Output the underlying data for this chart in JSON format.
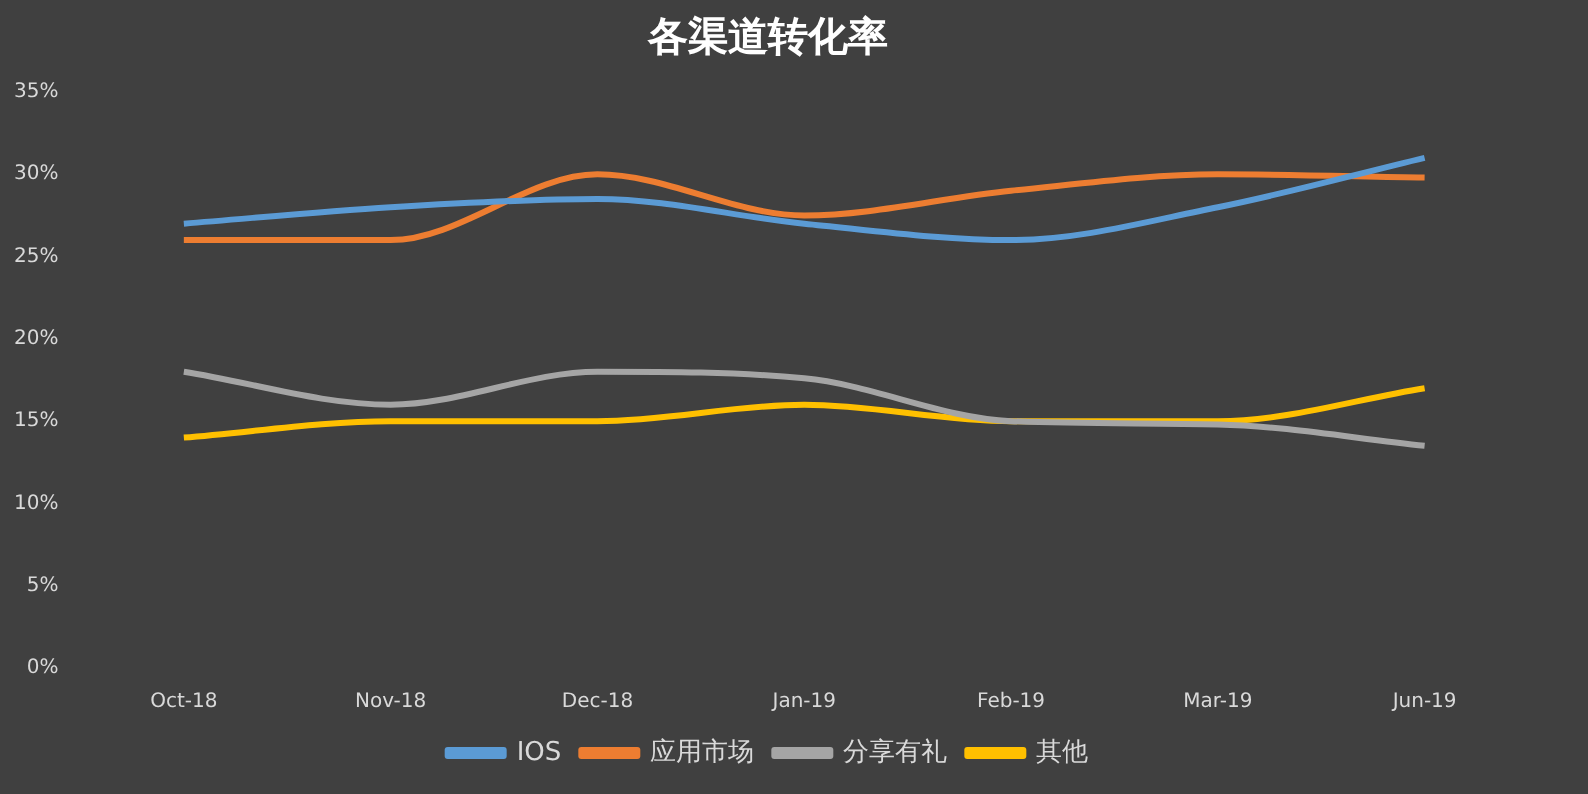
{
  "chart_data": {
    "type": "line",
    "title": "各渠道转化率",
    "categories": [
      "Oct-18",
      "Nov-18",
      "Dec-18",
      "Jan-19",
      "Feb-19",
      "Mar-19",
      "Jun-19"
    ],
    "series": [
      {
        "name": "IOS",
        "color": "#5b9bd5",
        "values": [
          27,
          28,
          28.5,
          27,
          26,
          28,
          31
        ]
      },
      {
        "name": "应用市场",
        "color": "#ed7d31",
        "values": [
          26,
          26,
          30,
          27.5,
          29,
          30,
          29.8
        ]
      },
      {
        "name": "分享有礼",
        "color": "#a5a5a5",
        "values": [
          18,
          16,
          18,
          17.6,
          15,
          14.8,
          13.5
        ]
      },
      {
        "name": "其他",
        "color": "#ffc000",
        "values": [
          14,
          15,
          15,
          16,
          15,
          15,
          17
        ]
      }
    ],
    "ylim": [
      0,
      35
    ],
    "yticks": [
      {
        "value": 0,
        "label": "0%"
      },
      {
        "value": 5,
        "label": "5%"
      },
      {
        "value": 10,
        "label": "10%"
      },
      {
        "value": 15,
        "label": "15%"
      },
      {
        "value": 20,
        "label": "20%"
      },
      {
        "value": 25,
        "label": "25%"
      },
      {
        "value": 30,
        "label": "30%"
      },
      {
        "value": 35,
        "label": "35%"
      }
    ],
    "grid": false,
    "legend": "bottom",
    "marker": "none",
    "line_style": "solid"
  }
}
